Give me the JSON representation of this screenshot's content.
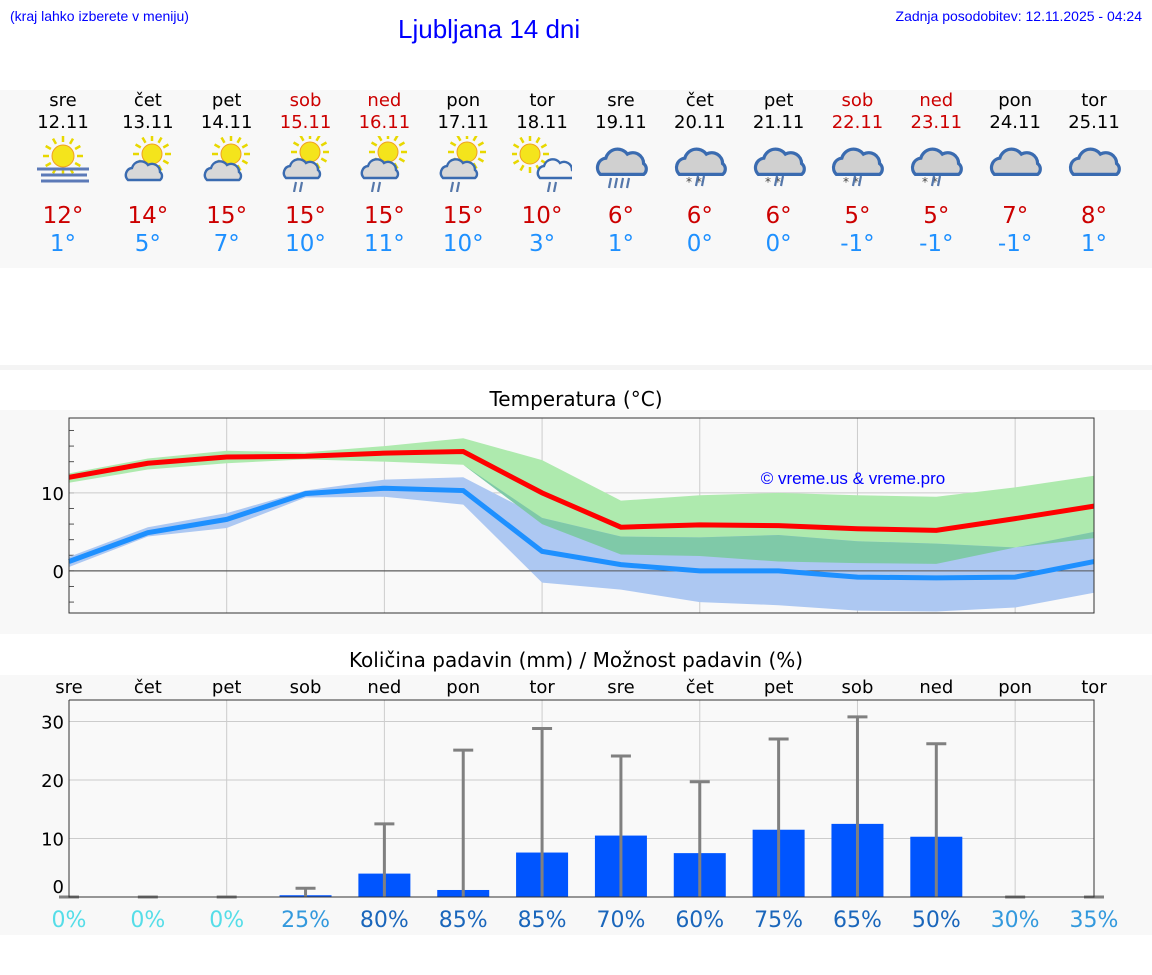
{
  "header": {
    "hint": "(kraj lahko izberete v meniju)",
    "title": "Ljubljana 14 dni",
    "updated": "Zadnja posodobitev: 12.11.2025 - 04:24"
  },
  "days": [
    {
      "name": "sre",
      "date": "12.11",
      "weekend": false,
      "icon": "sun-fog-icon",
      "max": "12°",
      "min": "1°"
    },
    {
      "name": "čet",
      "date": "13.11",
      "weekend": false,
      "icon": "partly-cloudy-icon",
      "max": "14°",
      "min": "5°"
    },
    {
      "name": "pet",
      "date": "14.11",
      "weekend": false,
      "icon": "partly-cloudy-icon",
      "max": "15°",
      "min": "7°"
    },
    {
      "name": "sob",
      "date": "15.11",
      "weekend": true,
      "icon": "partly-cloudy-rain-icon",
      "max": "15°",
      "min": "10°"
    },
    {
      "name": "ned",
      "date": "16.11",
      "weekend": true,
      "icon": "partly-cloudy-rain-icon",
      "max": "15°",
      "min": "11°"
    },
    {
      "name": "pon",
      "date": "17.11",
      "weekend": false,
      "icon": "partly-cloudy-rain-icon",
      "max": "15°",
      "min": "10°"
    },
    {
      "name": "tor",
      "date": "18.11",
      "weekend": false,
      "icon": "sun-cloud-rain-icon",
      "max": "10°",
      "min": "3°"
    },
    {
      "name": "sre",
      "date": "19.11",
      "weekend": false,
      "icon": "cloud-rain-icon",
      "max": "6°",
      "min": "1°"
    },
    {
      "name": "čet",
      "date": "20.11",
      "weekend": false,
      "icon": "cloud-sleet-icon",
      "max": "6°",
      "min": "0°"
    },
    {
      "name": "pet",
      "date": "21.11",
      "weekend": false,
      "icon": "cloud-sleet-icon",
      "max": "6°",
      "min": "0°"
    },
    {
      "name": "sob",
      "date": "22.11",
      "weekend": true,
      "icon": "cloud-sleet-icon",
      "max": "5°",
      "min": "-1°"
    },
    {
      "name": "ned",
      "date": "23.11",
      "weekend": true,
      "icon": "cloud-sleet-icon",
      "max": "5°",
      "min": "-1°"
    },
    {
      "name": "pon",
      "date": "24.11",
      "weekend": false,
      "icon": "cloudy-icon",
      "max": "7°",
      "min": "-1°"
    },
    {
      "name": "tor",
      "date": "25.11",
      "weekend": false,
      "icon": "cloudy-icon",
      "max": "8°",
      "min": "1°"
    }
  ],
  "colors": {
    "max": "#ff0000",
    "min": "#1e90ff",
    "max_band": "#aeeaae",
    "min_band": "#adc8f2",
    "overlap": "#7fc9a8",
    "bar": "#0055ff",
    "err": "#808080",
    "weekend": "#cc0000"
  },
  "chart_data": [
    {
      "type": "line",
      "title": "Temperatura (°C)",
      "ylim": [
        -5.4,
        19.6
      ],
      "yticks": [
        0,
        10
      ],
      "grid": true,
      "watermark": "© vreme.us & vreme.pro",
      "series": [
        {
          "key": "max",
          "values": [
            12.0,
            13.8,
            14.6,
            14.7,
            15.1,
            15.3,
            10.0,
            5.6,
            5.9,
            5.8,
            5.4,
            5.2,
            6.7,
            8.3
          ]
        },
        {
          "key": "min",
          "values": [
            1.2,
            4.9,
            6.6,
            9.9,
            10.6,
            10.3,
            2.5,
            0.8,
            0.0,
            0.0,
            -0.8,
            -0.9,
            -0.8,
            1.2
          ]
        }
      ],
      "bands": [
        {
          "key": "max_band",
          "upper": [
            12.5,
            14.4,
            15.4,
            15.2,
            16.0,
            17.0,
            14.2,
            9.0,
            9.7,
            10.0,
            9.7,
            9.5,
            10.7,
            12.2
          ],
          "lower": [
            11.3,
            13.0,
            13.8,
            14.3,
            14.0,
            13.6,
            6.0,
            2.1,
            1.9,
            1.2,
            1.0,
            0.9,
            3.0,
            4.2
          ]
        },
        {
          "key": "min_band",
          "upper": [
            1.8,
            5.6,
            7.4,
            10.3,
            11.7,
            12.0,
            6.8,
            4.4,
            4.3,
            4.6,
            3.8,
            3.5,
            3.0,
            5.0
          ],
          "lower": [
            0.5,
            4.4,
            5.5,
            9.4,
            9.5,
            8.5,
            -1.5,
            -2.4,
            -4.0,
            -4.4,
            -5.1,
            -5.2,
            -4.7,
            -2.8
          ]
        }
      ]
    },
    {
      "type": "bar",
      "title": "Količina padavin (mm) / Možnost padavin (%)",
      "ylim": [
        0,
        34
      ],
      "yticks": [
        0,
        10,
        20,
        30
      ],
      "grid": true,
      "categories": [
        "sre",
        "čet",
        "pet",
        "sob",
        "ned",
        "pon",
        "tor",
        "sre",
        "čet",
        "pet",
        "sob",
        "ned",
        "pon",
        "tor"
      ],
      "values": [
        0,
        0,
        0,
        0.3,
        4.0,
        1.2,
        7.6,
        10.5,
        7.5,
        11.5,
        12.5,
        10.3,
        0,
        0
      ],
      "error_max": [
        0,
        0,
        0,
        1.5,
        12.5,
        25.1,
        28.8,
        24.1,
        19.7,
        27.0,
        30.8,
        26.2,
        0,
        0
      ],
      "probability": [
        "0%",
        "0%",
        "0%",
        "25%",
        "80%",
        "85%",
        "85%",
        "70%",
        "60%",
        "75%",
        "65%",
        "50%",
        "30%",
        "35%"
      ],
      "probability_values": [
        0,
        0,
        0,
        25,
        80,
        85,
        85,
        70,
        60,
        75,
        65,
        50,
        30,
        35
      ]
    }
  ]
}
